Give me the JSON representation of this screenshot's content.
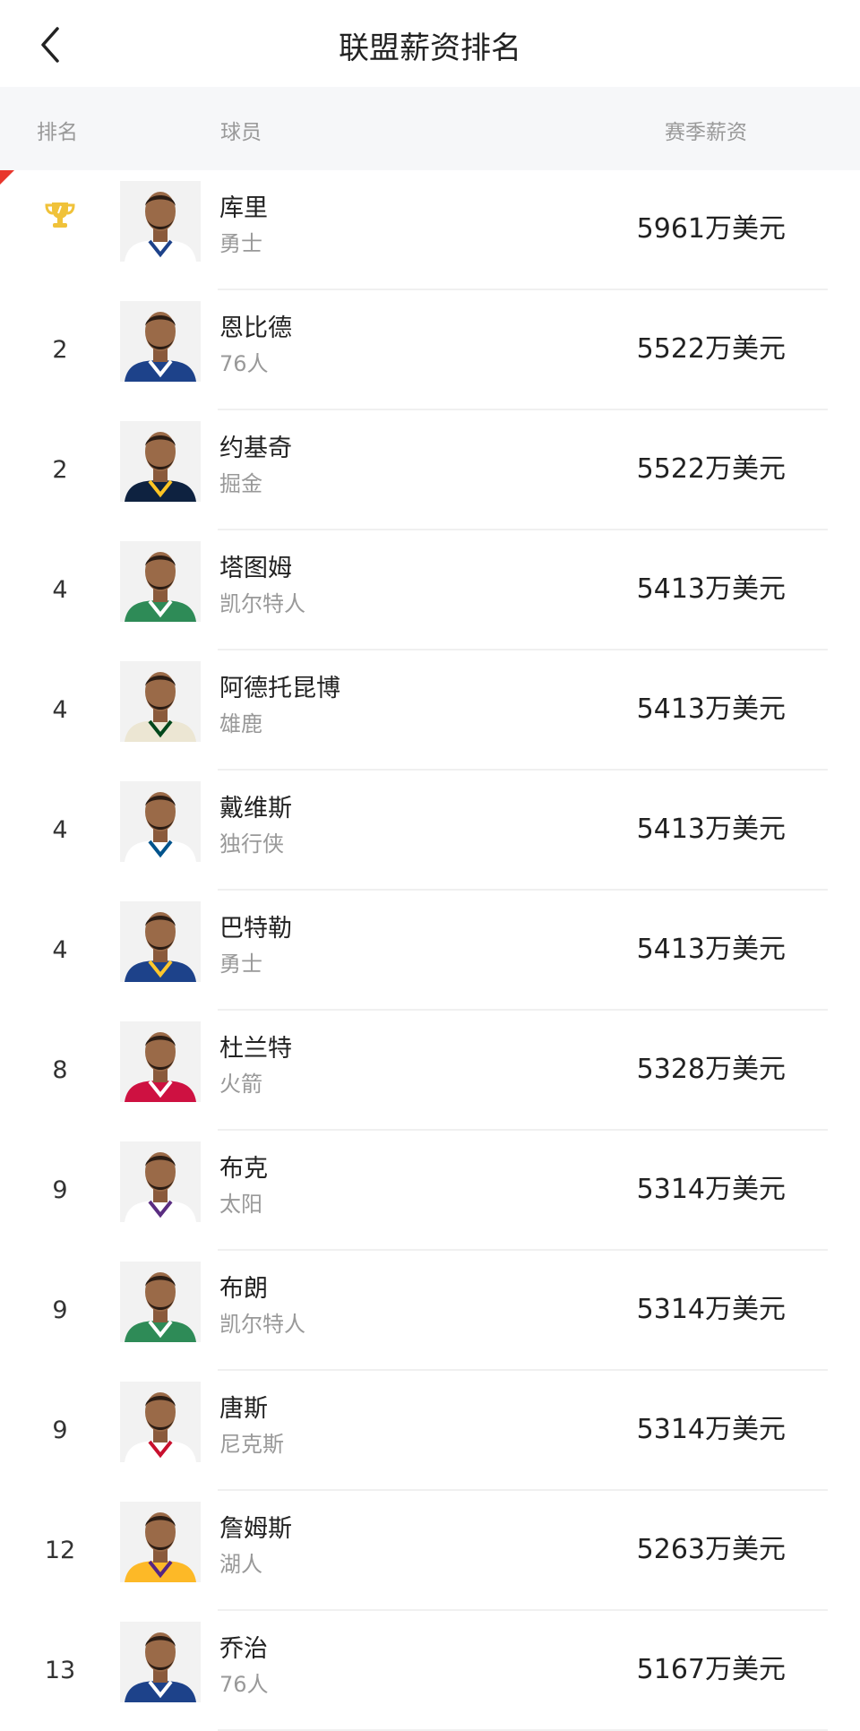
{
  "header": {
    "title": "联盟薪资排名",
    "back_icon": "chevron-left-icon"
  },
  "columns": {
    "rank": "排名",
    "player": "球员",
    "salary": "赛季薪资"
  },
  "colors": {
    "trophy": "#f0c23a",
    "corner": "#e8362c"
  },
  "rows": [
    {
      "rank": "1",
      "icon": "trophy-icon",
      "name": "库里",
      "team": "勇士",
      "salary": "5961万美元",
      "jersey": "#ffffff",
      "trim": "#1d428a"
    },
    {
      "rank": "2",
      "name": "恩比德",
      "team": "76人",
      "salary": "5522万美元",
      "jersey": "#1d428a",
      "trim": "#ffffff"
    },
    {
      "rank": "2",
      "name": "约基奇",
      "team": "掘金",
      "salary": "5522万美元",
      "jersey": "#0e2240",
      "trim": "#fec524"
    },
    {
      "rank": "4",
      "name": "塔图姆",
      "team": "凯尔特人",
      "salary": "5413万美元",
      "jersey": "#2e8b57",
      "trim": "#ffffff"
    },
    {
      "rank": "4",
      "name": "阿德托昆博",
      "team": "雄鹿",
      "salary": "5413万美元",
      "jersey": "#ece6d3",
      "trim": "#00471b"
    },
    {
      "rank": "4",
      "name": "戴维斯",
      "team": "独行侠",
      "salary": "5413万美元",
      "jersey": "#ffffff",
      "trim": "#00538c"
    },
    {
      "rank": "4",
      "name": "巴特勒",
      "team": "勇士",
      "salary": "5413万美元",
      "jersey": "#1d428a",
      "trim": "#ffc72c"
    },
    {
      "rank": "8",
      "name": "杜兰特",
      "team": "火箭",
      "salary": "5328万美元",
      "jersey": "#ce1141",
      "trim": "#ffffff"
    },
    {
      "rank": "9",
      "name": "布克",
      "team": "太阳",
      "salary": "5314万美元",
      "jersey": "#ffffff",
      "trim": "#5a2d81"
    },
    {
      "rank": "9",
      "name": "布朗",
      "team": "凯尔特人",
      "salary": "5314万美元",
      "jersey": "#2e8b57",
      "trim": "#ffffff"
    },
    {
      "rank": "9",
      "name": "唐斯",
      "team": "尼克斯",
      "salary": "5314万美元",
      "jersey": "#ffffff",
      "trim": "#c8102e"
    },
    {
      "rank": "12",
      "name": "詹姆斯",
      "team": "湖人",
      "salary": "5263万美元",
      "jersey": "#fdb927",
      "trim": "#552583"
    },
    {
      "rank": "13",
      "name": "乔治",
      "team": "76人",
      "salary": "5167万美元",
      "jersey": "#1d428a",
      "trim": "#ffffff"
    }
  ]
}
